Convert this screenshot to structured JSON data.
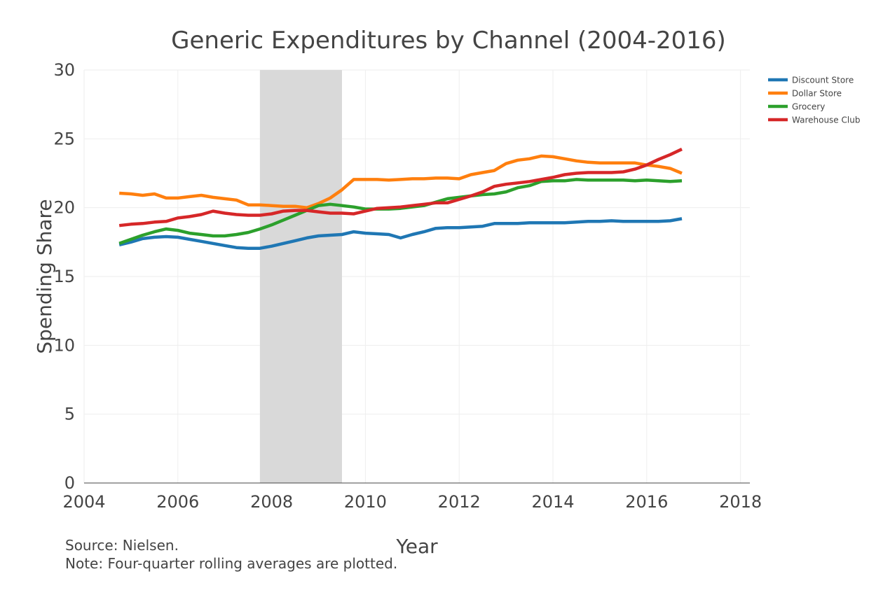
{
  "chart_data": {
    "type": "line",
    "title": "Generic Expenditures by Channel (2004-2016)",
    "xlabel": "Year",
    "ylabel": "Spending Share",
    "xlim": [
      2004,
      2018.2
    ],
    "ylim": [
      0,
      30
    ],
    "x_ticks": [
      2004,
      2006,
      2008,
      2010,
      2012,
      2014,
      2016,
      2018
    ],
    "y_ticks": [
      0,
      5,
      10,
      15,
      20,
      25,
      30
    ],
    "grid": true,
    "legend_position": "top-right",
    "shaded_region": {
      "x0": 2007.75,
      "x1": 2009.5,
      "color": "#d9d9d9"
    },
    "series": [
      {
        "name": "Discount Store",
        "color": "#1f77b4",
        "x": [
          2004.75,
          2005.0,
          2005.25,
          2005.5,
          2005.75,
          2006.0,
          2006.25,
          2006.5,
          2006.75,
          2007.0,
          2007.25,
          2007.5,
          2007.75,
          2008.0,
          2008.25,
          2008.5,
          2008.75,
          2009.0,
          2009.25,
          2009.5,
          2009.75,
          2010.0,
          2010.25,
          2010.5,
          2010.75,
          2011.0,
          2011.25,
          2011.5,
          2011.75,
          2012.0,
          2012.25,
          2012.5,
          2012.75,
          2013.0,
          2013.25,
          2013.5,
          2013.75,
          2014.0,
          2014.25,
          2014.5,
          2014.75,
          2015.0,
          2015.25,
          2015.5,
          2015.75,
          2016.0,
          2016.25,
          2016.5,
          2016.75
        ],
        "y": [
          17.3,
          17.5,
          17.75,
          17.85,
          17.9,
          17.85,
          17.7,
          17.55,
          17.4,
          17.25,
          17.1,
          17.05,
          17.05,
          17.2,
          17.4,
          17.6,
          17.8,
          17.95,
          18.0,
          18.05,
          18.25,
          18.15,
          18.1,
          18.05,
          17.8,
          18.05,
          18.25,
          18.5,
          18.55,
          18.55,
          18.6,
          18.65,
          18.85,
          18.85,
          18.85,
          18.9,
          18.9,
          18.9,
          18.9,
          18.95,
          19.0,
          19.0,
          19.05,
          19.0,
          19.0,
          19.0,
          19.0,
          19.05,
          19.2
        ]
      },
      {
        "name": "Dollar Store",
        "color": "#ff7f0e",
        "x": [
          2004.75,
          2005.0,
          2005.25,
          2005.5,
          2005.75,
          2006.0,
          2006.25,
          2006.5,
          2006.75,
          2007.0,
          2007.25,
          2007.5,
          2007.75,
          2008.0,
          2008.25,
          2008.5,
          2008.75,
          2009.0,
          2009.25,
          2009.5,
          2009.75,
          2010.0,
          2010.25,
          2010.5,
          2010.75,
          2011.0,
          2011.25,
          2011.5,
          2011.75,
          2012.0,
          2012.25,
          2012.5,
          2012.75,
          2013.0,
          2013.25,
          2013.5,
          2013.75,
          2014.0,
          2014.25,
          2014.5,
          2014.75,
          2015.0,
          2015.25,
          2015.5,
          2015.75,
          2016.0,
          2016.25,
          2016.5,
          2016.75
        ],
        "y": [
          21.05,
          21.0,
          20.9,
          21.0,
          20.7,
          20.7,
          20.8,
          20.9,
          20.75,
          20.65,
          20.55,
          20.2,
          20.2,
          20.15,
          20.1,
          20.1,
          20.0,
          20.3,
          20.7,
          21.3,
          22.05,
          22.05,
          22.05,
          22.0,
          22.05,
          22.1,
          22.1,
          22.15,
          22.15,
          22.1,
          22.4,
          22.55,
          22.7,
          23.2,
          23.45,
          23.55,
          23.75,
          23.7,
          23.55,
          23.4,
          23.3,
          23.25,
          23.25,
          23.25,
          23.25,
          23.1,
          23.0,
          22.85,
          22.5
        ]
      },
      {
        "name": "Grocery",
        "color": "#2ca02c",
        "x": [
          2004.75,
          2005.0,
          2005.25,
          2005.5,
          2005.75,
          2006.0,
          2006.25,
          2006.5,
          2006.75,
          2007.0,
          2007.25,
          2007.5,
          2007.75,
          2008.0,
          2008.25,
          2008.5,
          2008.75,
          2009.0,
          2009.25,
          2009.5,
          2009.75,
          2010.0,
          2010.25,
          2010.5,
          2010.75,
          2011.0,
          2011.25,
          2011.5,
          2011.75,
          2012.0,
          2012.25,
          2012.5,
          2012.75,
          2013.0,
          2013.25,
          2013.5,
          2013.75,
          2014.0,
          2014.25,
          2014.5,
          2014.75,
          2015.0,
          2015.25,
          2015.5,
          2015.75,
          2016.0,
          2016.25,
          2016.5,
          2016.75
        ],
        "y": [
          17.4,
          17.7,
          18.0,
          18.25,
          18.45,
          18.35,
          18.15,
          18.05,
          17.95,
          17.95,
          18.05,
          18.2,
          18.45,
          18.75,
          19.1,
          19.45,
          19.8,
          20.15,
          20.25,
          20.15,
          20.05,
          19.9,
          19.9,
          19.9,
          19.95,
          20.05,
          20.15,
          20.4,
          20.65,
          20.75,
          20.85,
          20.95,
          21.0,
          21.15,
          21.45,
          21.6,
          21.9,
          21.95,
          21.95,
          22.05,
          22.0,
          22.0,
          22.0,
          22.0,
          21.95,
          22.0,
          21.95,
          21.9,
          21.95
        ]
      },
      {
        "name": "Warehouse Club",
        "color": "#d62728",
        "x": [
          2004.75,
          2005.0,
          2005.25,
          2005.5,
          2005.75,
          2006.0,
          2006.25,
          2006.5,
          2006.75,
          2007.0,
          2007.25,
          2007.5,
          2007.75,
          2008.0,
          2008.25,
          2008.5,
          2008.75,
          2009.0,
          2009.25,
          2009.5,
          2009.75,
          2010.0,
          2010.25,
          2010.5,
          2010.75,
          2011.0,
          2011.25,
          2011.5,
          2011.75,
          2012.0,
          2012.25,
          2012.5,
          2012.75,
          2013.0,
          2013.25,
          2013.5,
          2013.75,
          2014.0,
          2014.25,
          2014.5,
          2014.75,
          2015.0,
          2015.25,
          2015.5,
          2015.75,
          2016.0,
          2016.25,
          2016.5,
          2016.75
        ],
        "y": [
          18.7,
          18.8,
          18.85,
          18.95,
          19.0,
          19.25,
          19.35,
          19.5,
          19.75,
          19.6,
          19.5,
          19.45,
          19.45,
          19.55,
          19.75,
          19.8,
          19.8,
          19.7,
          19.6,
          19.6,
          19.55,
          19.75,
          19.95,
          20.0,
          20.05,
          20.15,
          20.25,
          20.35,
          20.35,
          20.6,
          20.85,
          21.15,
          21.55,
          21.7,
          21.8,
          21.9,
          22.05,
          22.2,
          22.4,
          22.5,
          22.55,
          22.55,
          22.55,
          22.6,
          22.8,
          23.1,
          23.5,
          23.85,
          24.25
        ]
      }
    ]
  },
  "notes": {
    "source": "Source: Nielsen.",
    "note": "Note: Four-quarter rolling averages are plotted."
  }
}
